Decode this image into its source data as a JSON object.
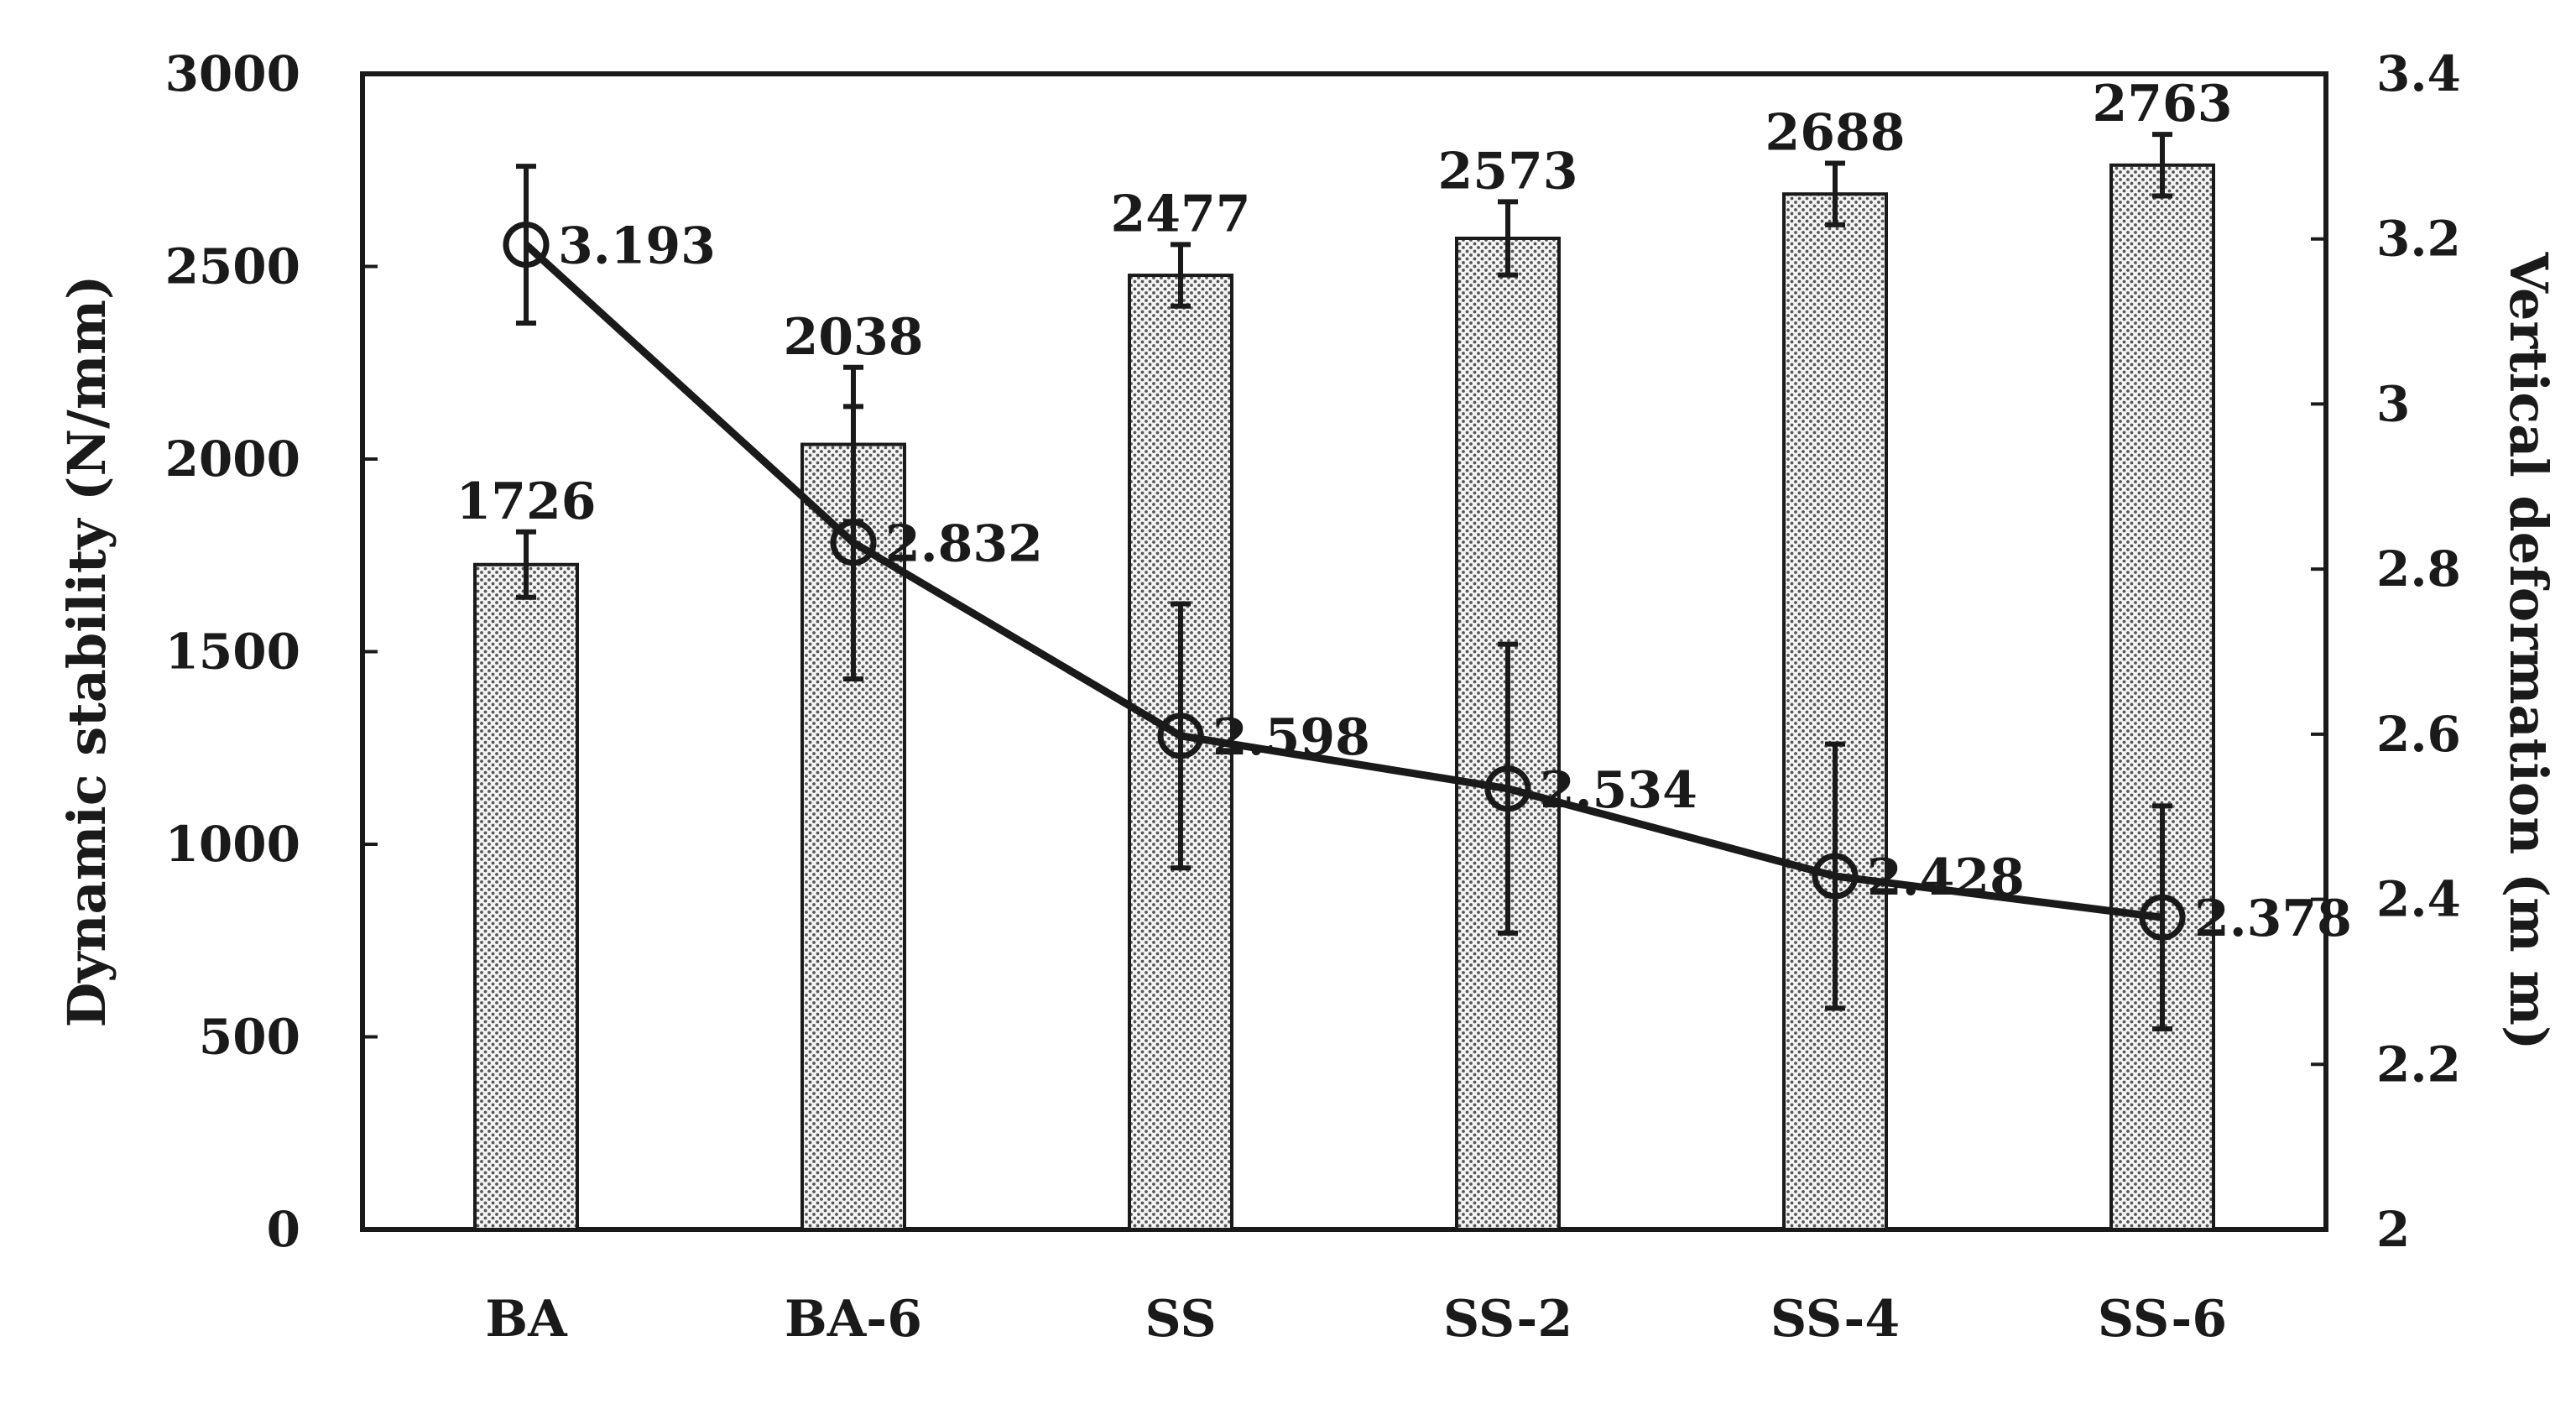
{
  "chart_data": {
    "type": "bar",
    "categories": [
      "BA",
      "BA-6",
      "SS",
      "SS-2",
      "SS-4",
      "SS-6"
    ],
    "series": [
      {
        "type": "bar",
        "axis": "left",
        "values": [
          1726,
          2038,
          2477,
          2573,
          2688,
          2763
        ],
        "value_labels": [
          "1726",
          "2038",
          "2477",
          "2573",
          "2688",
          "2763"
        ],
        "error": [
          85,
          200,
          80,
          95,
          80,
          80
        ],
        "pattern": "dotted"
      },
      {
        "type": "line",
        "axis": "right",
        "marker": "open-circle",
        "values": [
          3.193,
          2.832,
          2.598,
          2.534,
          2.428,
          2.378
        ],
        "value_labels": [
          "3.193",
          "2.832",
          "2.598",
          "2.534",
          "2.428",
          "2.378"
        ],
        "error": [
          0.095,
          0.165,
          0.16,
          0.175,
          0.16,
          0.135
        ]
      }
    ],
    "ylabel": "Dynamic stability (N/mm)",
    "ylim": [
      0,
      3000
    ],
    "yticks": [
      "0",
      "500",
      "1000",
      "1500",
      "2000",
      "2500",
      "3000"
    ],
    "y2label": "Vertical deformation (m m)",
    "y2lim": [
      2,
      3.4
    ],
    "y2ticks": [
      "2",
      "2.2",
      "2.4",
      "2.6",
      "2.8",
      "3",
      "3.2",
      "3.4"
    ],
    "grid": false,
    "legend": "none",
    "colors": {
      "ink": "#1a1a1a",
      "bar_fill": "#f2f2f2"
    }
  }
}
